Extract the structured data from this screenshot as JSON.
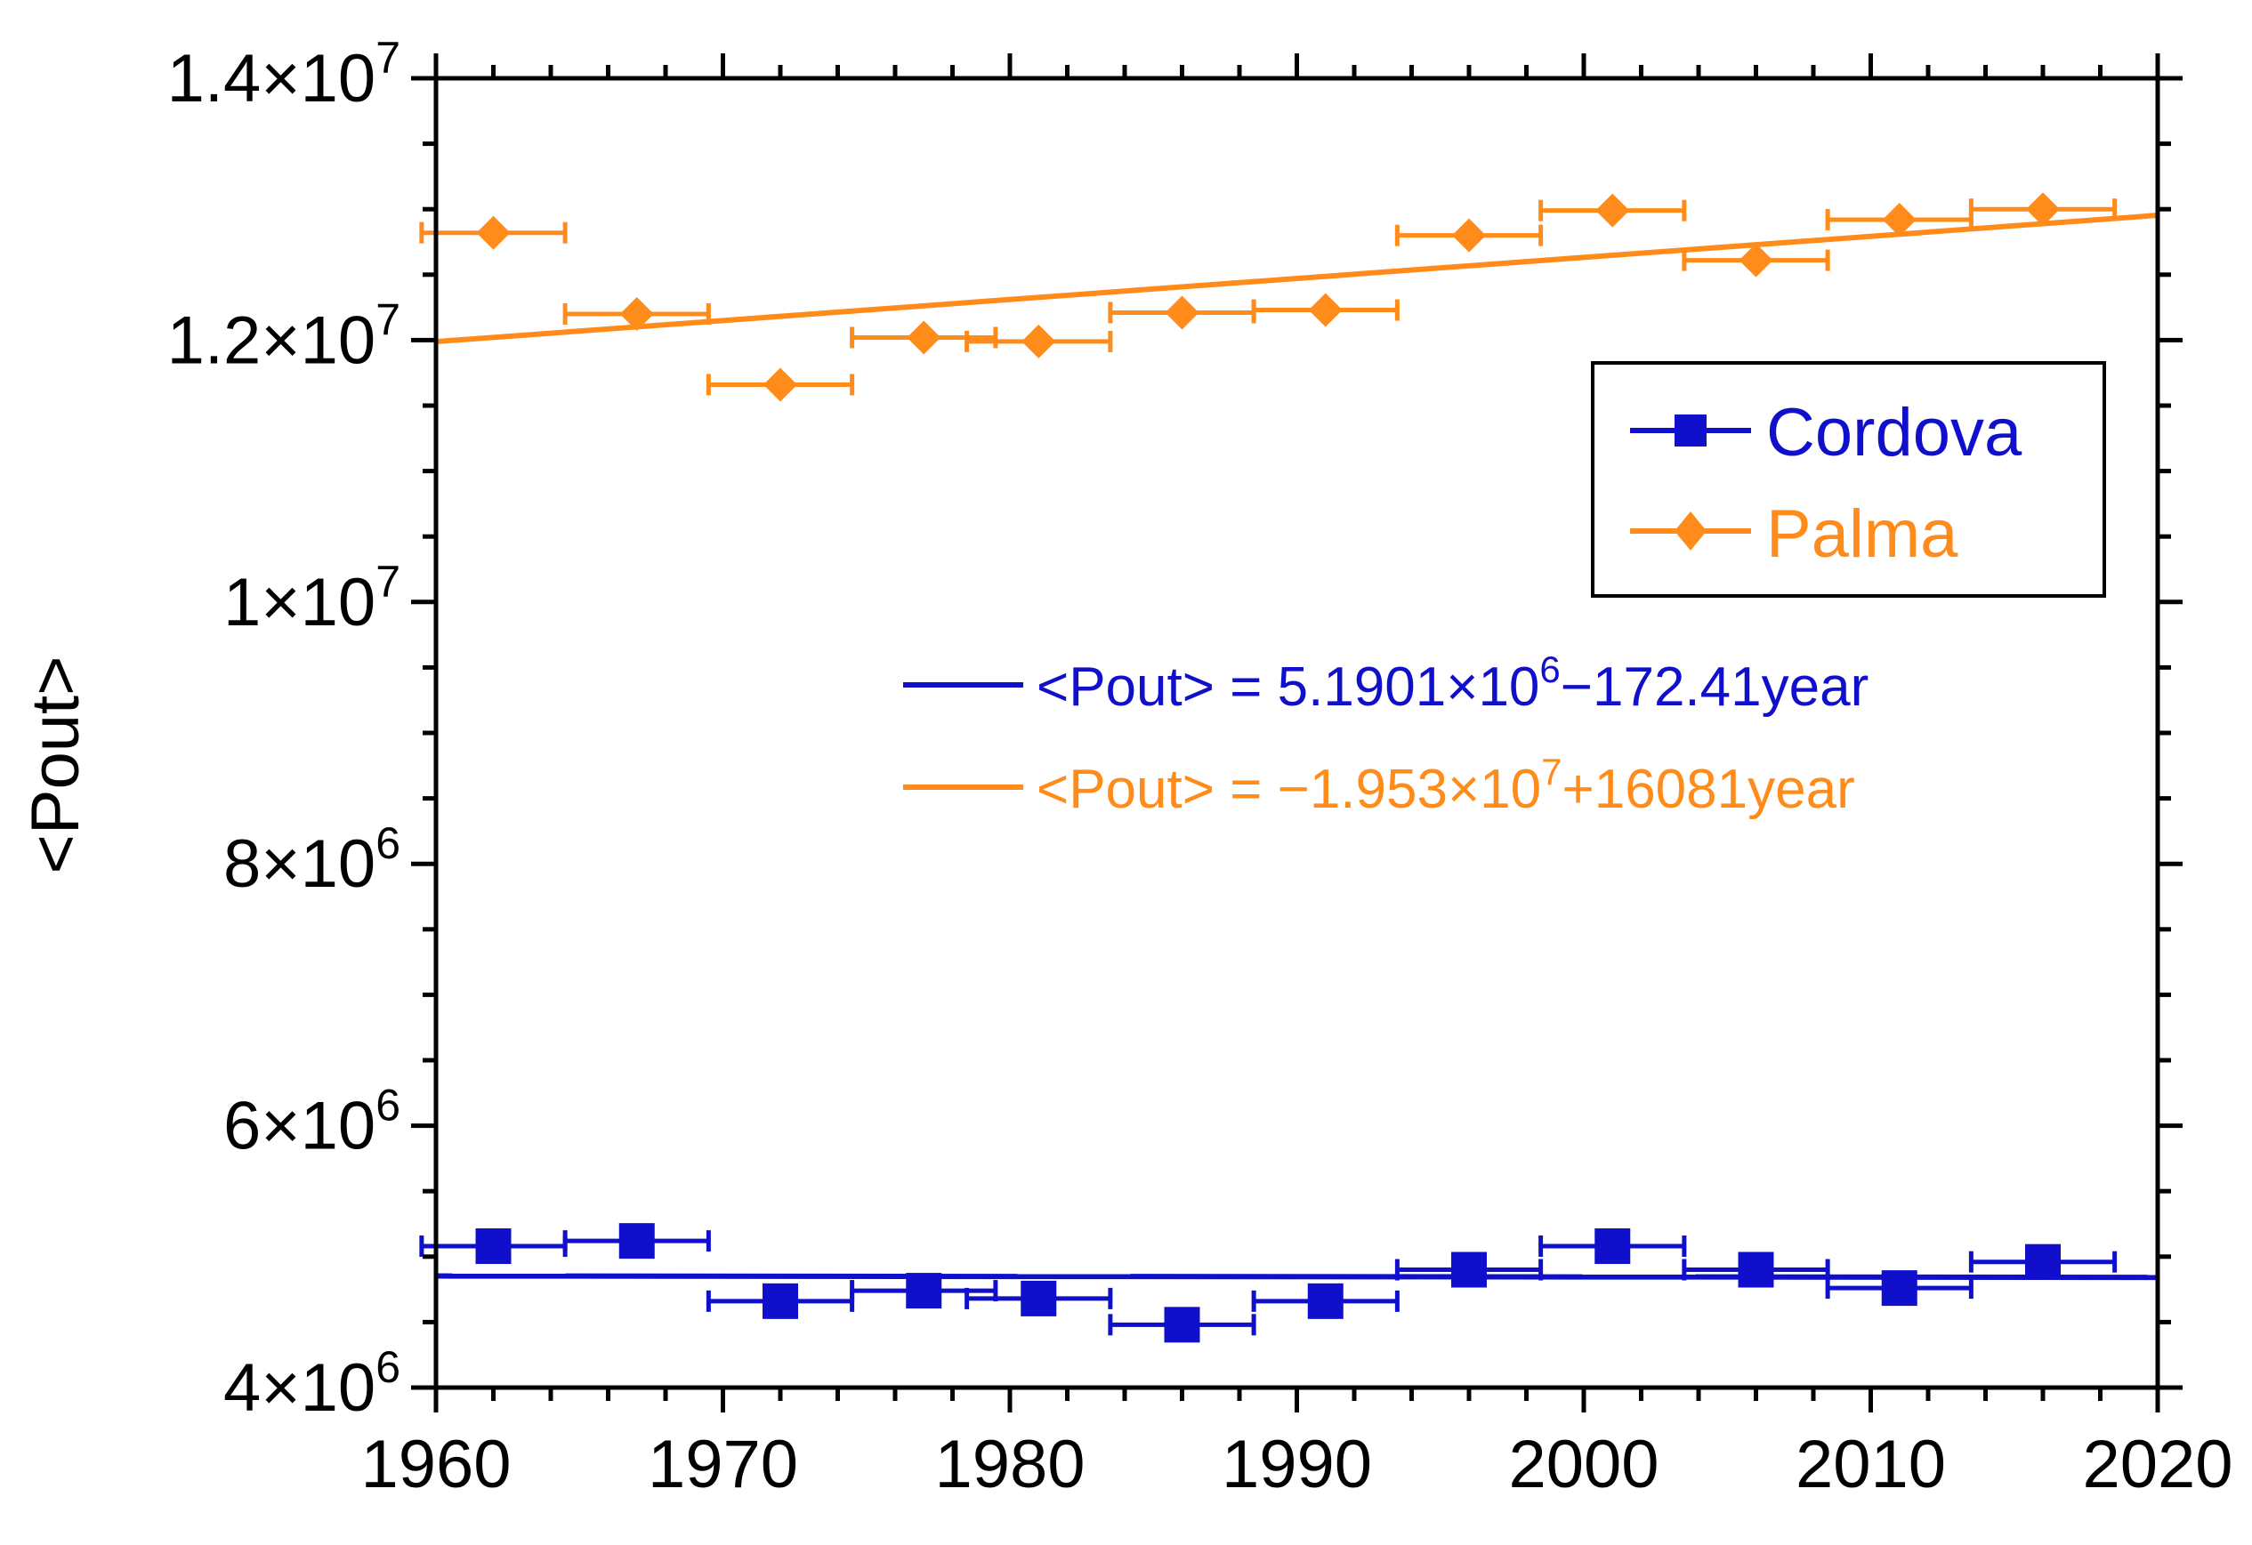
{
  "chart_data": {
    "type": "scatter",
    "title": "",
    "xlabel": "",
    "ylabel": "<Pout>",
    "xlim": [
      1960,
      2020
    ],
    "ylim": [
      4000000,
      14000000
    ],
    "x_ticks": [
      {
        "value": 1960,
        "label": "1960"
      },
      {
        "value": 1970,
        "label": "1970"
      },
      {
        "value": 1980,
        "label": "1980"
      },
      {
        "value": 1990,
        "label": "1990"
      },
      {
        "value": 2000,
        "label": "2000"
      },
      {
        "value": 2010,
        "label": "2010"
      },
      {
        "value": 2020,
        "label": "2020"
      }
    ],
    "y_ticks": [
      {
        "value": 4000000,
        "label_base": "4×10",
        "label_exp": "6"
      },
      {
        "value": 6000000,
        "label_base": "6×10",
        "label_exp": "6"
      },
      {
        "value": 8000000,
        "label_base": "8×10",
        "label_exp": "6"
      },
      {
        "value": 10000000,
        "label_base": "1×10",
        "label_exp": "7"
      },
      {
        "value": 12000000,
        "label_base": "1.2×10",
        "label_exp": "7"
      },
      {
        "value": 14000000,
        "label_base": "1.4×10",
        "label_exp": "7"
      }
    ],
    "grid": false,
    "legend_position": "top-right",
    "series": [
      {
        "name": "Cordova",
        "color": "#1010cc",
        "marker": "square",
        "x": [
          1962,
          1967,
          1972,
          1977,
          1981,
          1986,
          1991,
          1996,
          2001,
          2006,
          2011,
          2016
        ],
        "y": [
          5080000,
          5120000,
          4660000,
          4740000,
          4680000,
          4480000,
          4660000,
          4900000,
          5080000,
          4900000,
          4760000,
          4960000
        ],
        "xerr": [
          2.5,
          2.5,
          2.5,
          2.5,
          2.5,
          2.5,
          2.5,
          2.5,
          2.5,
          2.5,
          2.5,
          2.5
        ],
        "fit": {
          "intercept": 5190100,
          "slope": -172.41,
          "equation_main": "<Pout> = 5.1901×10",
          "equation_exp": "6",
          "equation_rest": "−172.41year"
        }
      },
      {
        "name": "Palma",
        "color": "#ff8c1a",
        "marker": "diamond",
        "x": [
          1962,
          1967,
          1972,
          1977,
          1981,
          1986,
          1991,
          1996,
          2001,
          2006,
          2011,
          2016
        ],
        "y": [
          12820000,
          12200000,
          11660000,
          12020000,
          11990000,
          12210000,
          12230000,
          12800000,
          12990000,
          12610000,
          12920000,
          13000000
        ],
        "xerr": [
          2.5,
          2.5,
          2.5,
          2.5,
          2.5,
          2.5,
          2.5,
          2.5,
          2.5,
          2.5,
          2.5,
          2.5
        ],
        "fit": {
          "intercept": -19530000,
          "slope": 16081,
          "equation_main": "<Pout> = −1.953×10",
          "equation_exp": "7",
          "equation_rest": "+16081year"
        }
      }
    ]
  }
}
